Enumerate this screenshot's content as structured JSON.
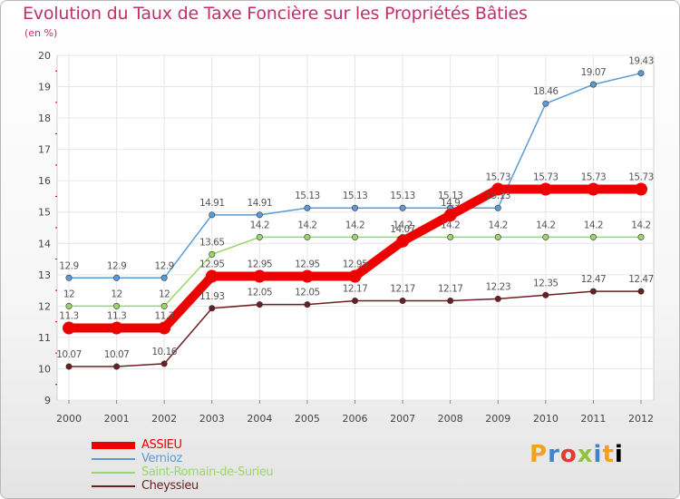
{
  "chart_data": {
    "type": "line",
    "title": "Evolution du Taux de Taxe Foncière sur les Propriétés Bâties",
    "subtitle": "(en %)",
    "xlabel": "",
    "ylabel": "(en %)",
    "categories": [
      "2000",
      "2001",
      "2002",
      "2003",
      "2004",
      "2005",
      "2006",
      "2007",
      "2008",
      "2009",
      "2010",
      "2011",
      "2012"
    ],
    "ylim": [
      9,
      20
    ],
    "yticks": [
      "9",
      "10",
      "11",
      "12",
      "13",
      "14",
      "15",
      "16",
      "17",
      "18",
      "19",
      "20"
    ],
    "grid": true,
    "series": [
      {
        "name": "ASSIEU",
        "color": "#ee0000",
        "values": [
          11.3,
          11.3,
          11.3,
          12.95,
          12.95,
          12.95,
          12.95,
          14.07,
          14.9,
          15.73,
          15.73,
          15.73,
          15.73
        ],
        "labels": [
          "11.3",
          "11.3",
          "11.3",
          "12.95",
          "12.95",
          "12.95",
          "12.95",
          "14.07",
          "14.9",
          "15.73",
          "15.73",
          "15.73",
          "15.73"
        ]
      },
      {
        "name": "Vernioz",
        "color": "#5b9bd5",
        "values": [
          12.9,
          12.9,
          12.9,
          14.91,
          14.91,
          15.13,
          15.13,
          15.13,
          15.13,
          15.13,
          18.46,
          19.07,
          19.43
        ],
        "labels": [
          "12.9",
          "12.9",
          "12.9",
          "14.91",
          "14.91",
          "15.13",
          "15.13",
          "15.13",
          "15.13",
          "15.13",
          "18.46",
          "19.07",
          "19.43"
        ]
      },
      {
        "name": "Saint-Romain-de-Surieu",
        "color": "#9bd66b",
        "values": [
          12,
          12,
          12,
          13.65,
          14.2,
          14.2,
          14.2,
          14.2,
          14.2,
          14.2,
          14.2,
          14.2,
          14.2
        ],
        "labels": [
          "12",
          "12",
          "12",
          "13.65",
          "14.2",
          "14.2",
          "14.2",
          "14.2",
          "14.2",
          "14.2",
          "14.2",
          "14.2",
          "14.2"
        ]
      },
      {
        "name": "Cheyssieu",
        "color": "#6b1f22",
        "values": [
          10.07,
          10.07,
          10.16,
          11.93,
          12.05,
          12.05,
          12.17,
          12.17,
          12.17,
          12.23,
          12.35,
          12.47,
          12.47
        ],
        "labels": [
          "10.07",
          "10.07",
          "10.16",
          "11.93",
          "12.05",
          "12.05",
          "12.17",
          "12.17",
          "12.17",
          "12.23",
          "12.35",
          "12.47",
          "12.47"
        ]
      }
    ]
  },
  "legend": {
    "items": [
      {
        "label": "ASSIEU",
        "color": "#ee0000",
        "thickness": 8
      },
      {
        "label": "Vernioz",
        "color": "#5b9bd5",
        "thickness": 2
      },
      {
        "label": "Saint-Romain-de-Surieu",
        "color": "#9bd66b",
        "thickness": 2
      },
      {
        "label": "Cheyssieu",
        "color": "#6b1f22",
        "thickness": 2
      }
    ]
  },
  "logo": {
    "letters": [
      "P",
      "r",
      "o",
      "x",
      "i",
      "t",
      "i"
    ]
  }
}
